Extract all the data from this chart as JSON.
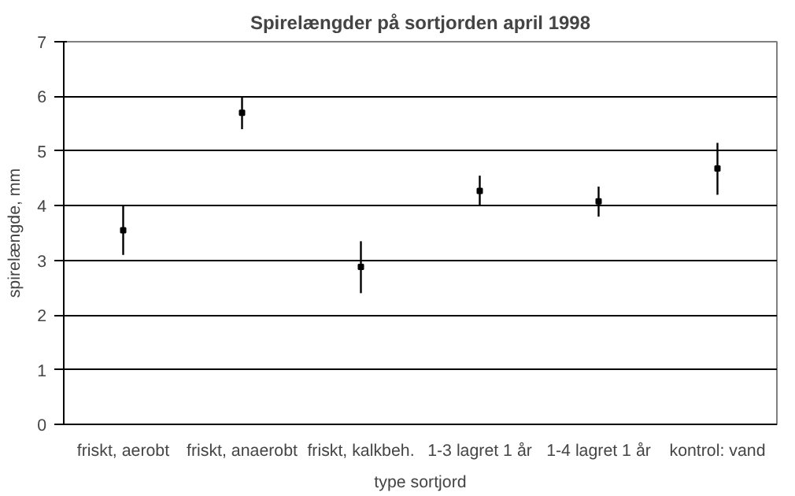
{
  "chart_data": {
    "type": "scatter",
    "title": "Spirelængder på sortjorden april 1998",
    "xlabel": "type sortjord",
    "ylabel": "spirelængde, mm",
    "categories": [
      "friskt, aerobt",
      "friskt, anaerobt",
      "friskt, kalkbeh.",
      "1-3 lagret 1 år",
      "1-4 lagret 1 år",
      "kontrol: vand"
    ],
    "series": [
      {
        "color": "#000000",
        "values": [
          3.55,
          5.7,
          2.88,
          4.27,
          4.08,
          4.68
        ],
        "errors": [
          [
            3.1,
            4.0
          ],
          [
            5.4,
            6.0
          ],
          [
            2.4,
            3.35
          ],
          [
            4.0,
            4.55
          ],
          [
            3.8,
            4.35
          ],
          [
            4.2,
            5.15
          ]
        ]
      }
    ],
    "ylim": [
      0,
      7
    ],
    "yticks": [
      0,
      1,
      2,
      3,
      4,
      5,
      6,
      7
    ],
    "grid": "y",
    "marker": "square"
  }
}
